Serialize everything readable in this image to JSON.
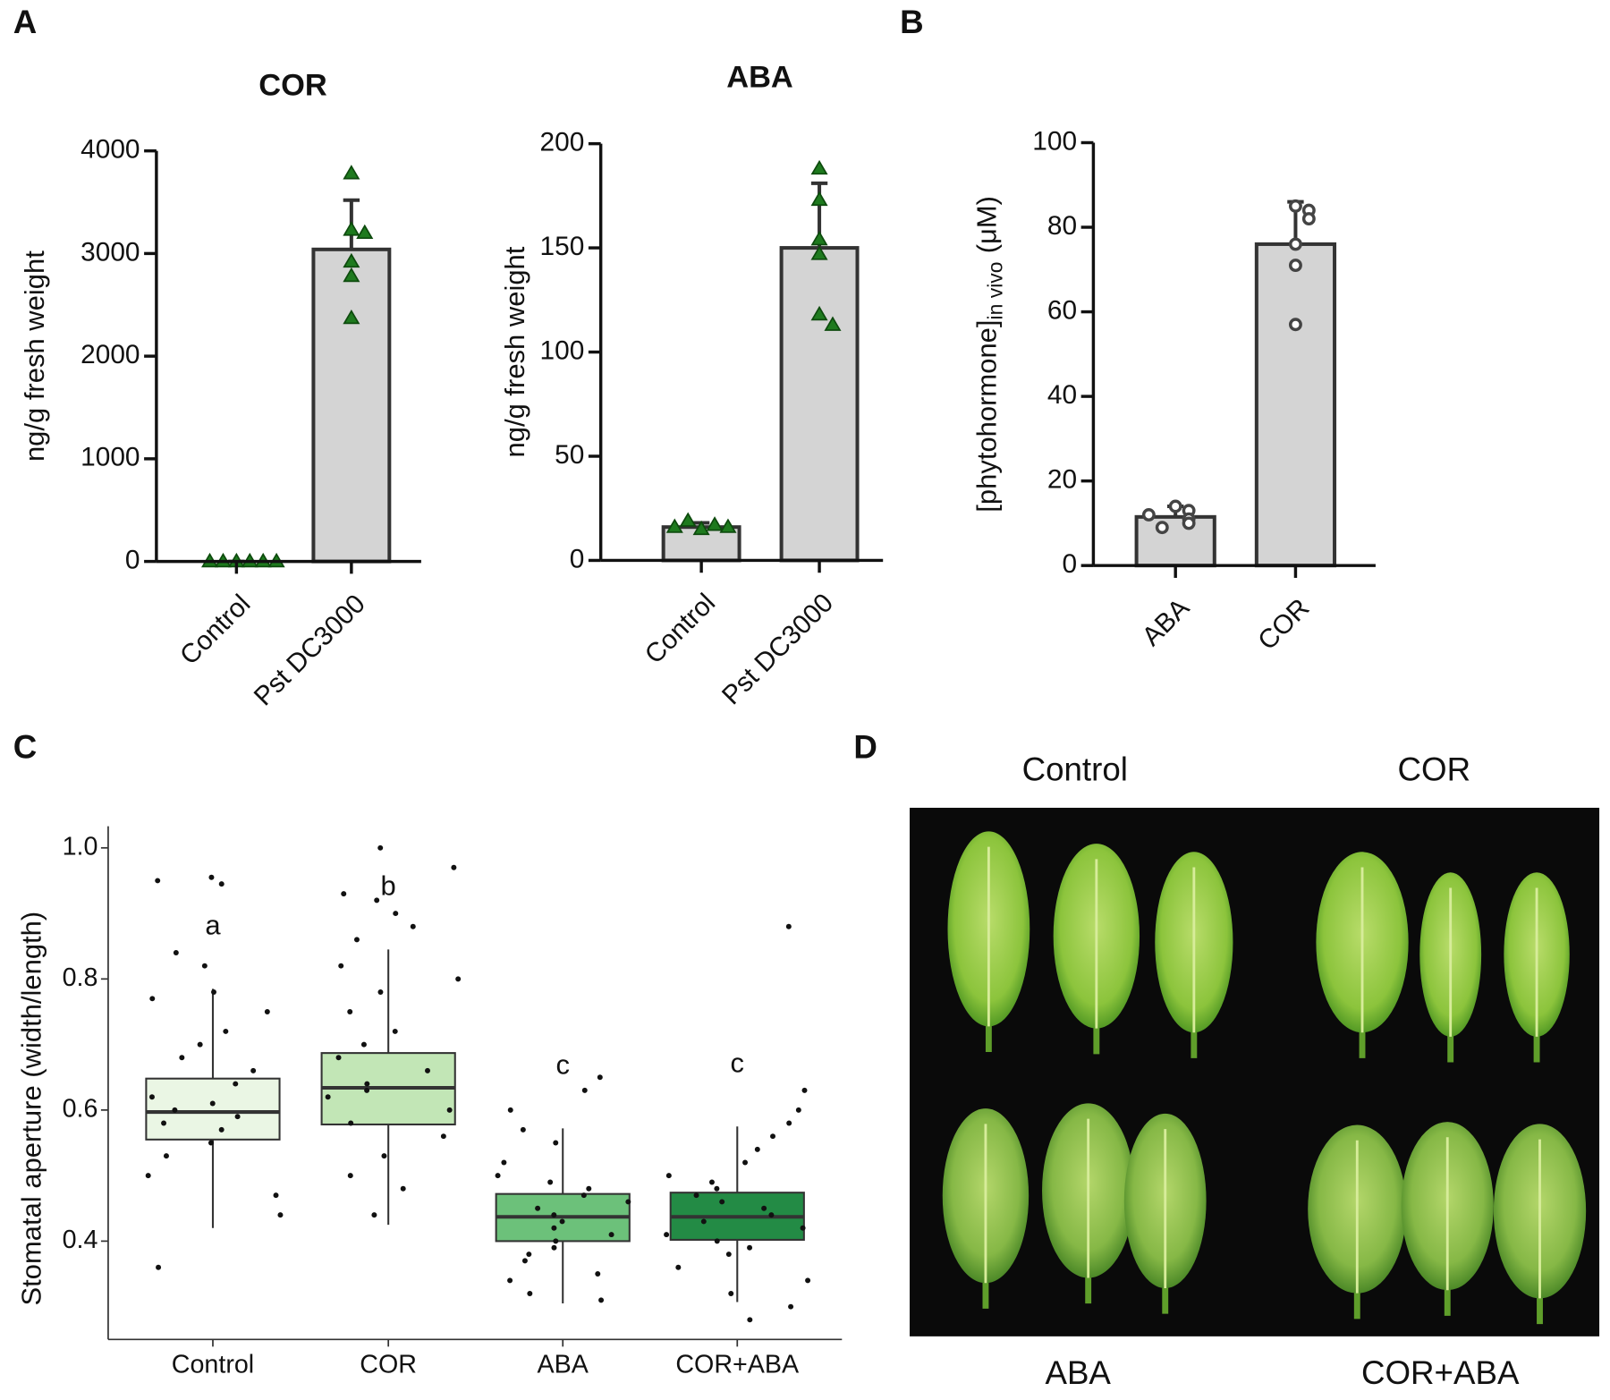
{
  "panel_labels": [
    "A",
    "B",
    "C",
    "D"
  ],
  "chart_data": [
    {
      "type": "bar",
      "title": "COR",
      "ylabel": "ng/g fresh weight",
      "categories": [
        "Control",
        "Pst DC3000"
      ],
      "values": [
        0,
        3040
      ],
      "errors": [
        0,
        480
      ],
      "points": [
        [
          0,
          0,
          0,
          0,
          0,
          0
        ],
        [
          3780,
          3230,
          3200,
          2920,
          2780,
          2370
        ]
      ],
      "ylim": [
        0,
        4000
      ],
      "yticks": [
        0,
        1000,
        2000,
        3000,
        4000
      ],
      "color": "#d4d4d4",
      "point_color": "#1e7a1e",
      "marker": "triangle"
    },
    {
      "type": "bar",
      "title": "ABA",
      "ylabel": "ng/g fresh weight",
      "categories": [
        "Control",
        "Pst DC3000"
      ],
      "values": [
        16,
        150
      ],
      "errors": [
        2,
        31
      ],
      "points": [
        [
          15,
          17,
          19,
          16,
          16
        ],
        [
          188,
          173,
          154,
          147,
          118,
          113
        ]
      ],
      "ylim": [
        0,
        200
      ],
      "yticks": [
        0,
        50,
        100,
        150,
        200
      ],
      "color": "#d4d4d4",
      "point_color": "#1e7a1e",
      "marker": "triangle"
    },
    {
      "type": "bar",
      "ylabel": "[phytohormone]",
      "ylabel_sub": "in vivo",
      "ylabel_unit": "(μM)",
      "categories": [
        "ABA",
        "COR"
      ],
      "values": [
        11.5,
        76
      ],
      "errors": [
        2.5,
        10
      ],
      "points": [
        [
          14,
          13,
          11,
          10,
          9,
          12
        ],
        [
          85,
          84,
          82,
          76,
          71,
          57
        ]
      ],
      "ylim": [
        0,
        100
      ],
      "yticks": [
        0,
        20,
        40,
        60,
        80,
        100
      ],
      "color": "#d4d4d4",
      "point_color": "#444444",
      "marker": "open-circle"
    },
    {
      "type": "box",
      "ylabel": "Stomatal aperture (width/length)",
      "categories": [
        "Control",
        "COR",
        "ABA",
        "COR+ABA"
      ],
      "boxes": [
        {
          "min": 0.42,
          "q1": 0.555,
          "median": 0.597,
          "q3": 0.648,
          "max": 0.785
        },
        {
          "min": 0.425,
          "q1": 0.578,
          "median": 0.634,
          "q3": 0.687,
          "max": 0.845
        },
        {
          "min": 0.305,
          "q1": 0.4,
          "median": 0.437,
          "q3": 0.472,
          "max": 0.572
        },
        {
          "min": 0.307,
          "q1": 0.402,
          "median": 0.437,
          "q3": 0.474,
          "max": 0.575
        }
      ],
      "colors": [
        "#eaf6e4",
        "#c2e6b6",
        "#6cc17a",
        "#238b45"
      ],
      "letters": [
        "a",
        "b",
        "c",
        "c"
      ],
      "points": [
        [
          0.955,
          0.945,
          0.95,
          0.84,
          0.82,
          0.78,
          0.77,
          0.75,
          0.72,
          0.7,
          0.68,
          0.66,
          0.64,
          0.62,
          0.61,
          0.6,
          0.59,
          0.58,
          0.57,
          0.55,
          0.53,
          0.5,
          0.47,
          0.44,
          0.36
        ],
        [
          1.0,
          0.97,
          0.93,
          0.92,
          0.9,
          0.88,
          0.86,
          0.82,
          0.8,
          0.78,
          0.75,
          0.72,
          0.7,
          0.68,
          0.66,
          0.64,
          0.63,
          0.62,
          0.6,
          0.58,
          0.56,
          0.53,
          0.5,
          0.48,
          0.44
        ],
        [
          0.65,
          0.63,
          0.6,
          0.57,
          0.55,
          0.52,
          0.5,
          0.49,
          0.48,
          0.47,
          0.46,
          0.45,
          0.44,
          0.43,
          0.42,
          0.41,
          0.4,
          0.39,
          0.38,
          0.37,
          0.35,
          0.34,
          0.32,
          0.31
        ],
        [
          0.88,
          0.63,
          0.6,
          0.58,
          0.56,
          0.54,
          0.52,
          0.5,
          0.49,
          0.48,
          0.47,
          0.46,
          0.45,
          0.44,
          0.43,
          0.42,
          0.41,
          0.4,
          0.39,
          0.38,
          0.36,
          0.34,
          0.32,
          0.3,
          0.28
        ]
      ],
      "ylim": [
        0.25,
        1.033
      ],
      "yticks": [
        0.4,
        0.6,
        0.8,
        {
          "value": 1.0,
          "label": "1.0"
        }
      ]
    }
  ],
  "image": {
    "top_labels": [
      "Control",
      "COR"
    ],
    "bottom_labels": [
      "ABA",
      "COR+ABA"
    ]
  }
}
